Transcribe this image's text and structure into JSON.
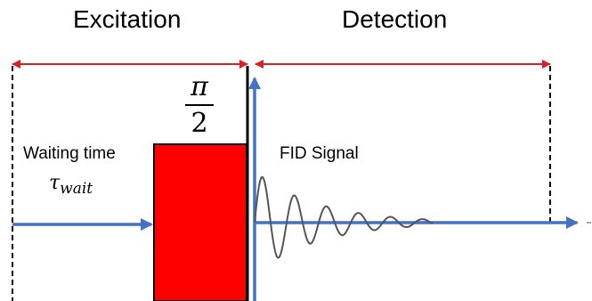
{
  "phases": {
    "excitation": "Excitation",
    "detection": "Detection"
  },
  "pulse": {
    "angle_numerator": "π",
    "angle_denominator": "2",
    "color": "#ff0000"
  },
  "waiting": {
    "label": "Waiting time",
    "symbol": "τ",
    "subscript": "wait"
  },
  "signal": {
    "label": "FID Signal"
  },
  "colors": {
    "span_arrow": "#e02020",
    "axis_arrow": "#4472c4",
    "fid_wave": "#555555"
  }
}
